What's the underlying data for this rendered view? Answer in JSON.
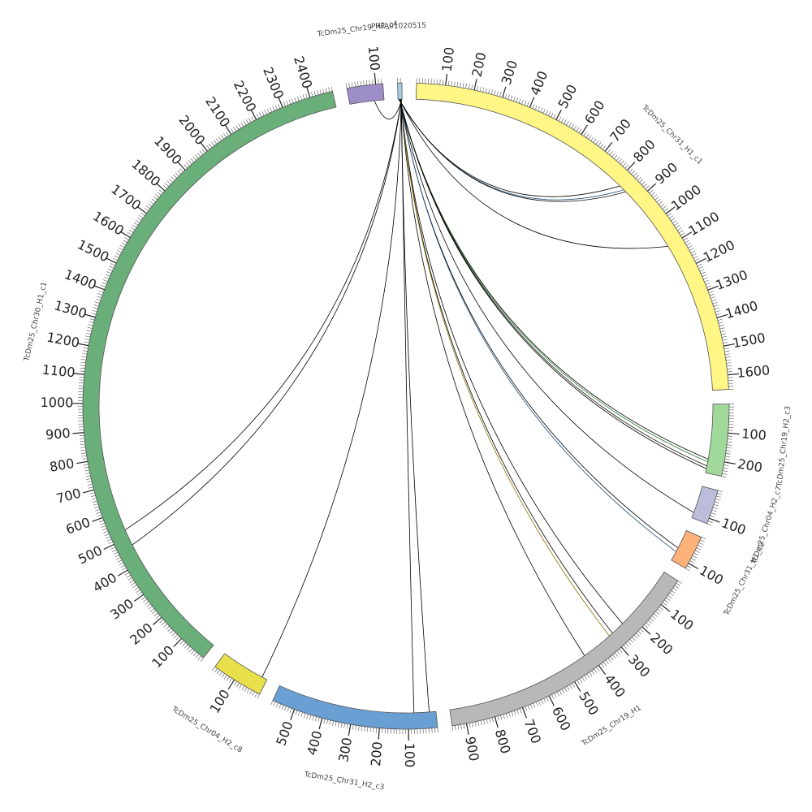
{
  "diagram": {
    "type": "circos",
    "unit_scale": 100,
    "segments": [
      {
        "id": "s_query",
        "label": "PRFA01020515",
        "length": 15,
        "color": "#a6cee3",
        "ticks": []
      },
      {
        "id": "s_chr31_h1",
        "label": "TcDm25_Chr31_H1_c1",
        "length": 1650,
        "color": "#fff685",
        "ticks": [
          "100",
          "200",
          "300",
          "400",
          "500",
          "600",
          "700",
          "800",
          "900",
          "1000",
          "1100",
          "1200",
          "1300",
          "1400",
          "1500",
          "1600"
        ]
      },
      {
        "id": "s_chr19_h2",
        "label": "TcDm25_Chr19_H2_c3",
        "length": 250,
        "color": "#a1d99b",
        "ticks": [
          "100",
          "200"
        ]
      },
      {
        "id": "s_chr04_h2",
        "label": "TcDm25_Chr04_H2_c7",
        "length": 120,
        "color": "#bcbddc",
        "ticks": [
          "100"
        ]
      },
      {
        "id": "s_chr31_small",
        "label": "TcDm25_Chr31_H1_c2",
        "length": 120,
        "color": "#fdb27a",
        "ticks": [
          "100"
        ]
      },
      {
        "id": "s_chr19_h1",
        "label": "TcDm25_Chr19_H1",
        "length": 950,
        "color": "#b8b8b8",
        "ticks": [
          "100",
          "200",
          "300",
          "400",
          "500",
          "600",
          "700",
          "800",
          "900"
        ]
      },
      {
        "id": "s_chr31_h2",
        "label": "TcDm25_Chr31_H2_c3",
        "length": 580,
        "color": "#6a9fd4",
        "ticks": [
          "100",
          "200",
          "300",
          "400",
          "500"
        ]
      },
      {
        "id": "s_chr04_h2_c8",
        "label": "TcDm25_Chr04_H2_c8",
        "length": 180,
        "color": "#e8e04a",
        "ticks": [
          "100"
        ]
      },
      {
        "id": "s_chr30_h1",
        "label": "TcDm25_Chr30_H1_c1",
        "length": 2480,
        "color": "#6aae7a",
        "ticks": [
          "100",
          "200",
          "300",
          "400",
          "500",
          "600",
          "700",
          "800",
          "900",
          "1000",
          "1100",
          "1200",
          "1300",
          "1400",
          "1500",
          "1600",
          "1700",
          "1800",
          "1900",
          "2000",
          "2100",
          "2200",
          "2300",
          "2400"
        ]
      },
      {
        "id": "s_chr19_small",
        "label": "TcDm25_Chr19_H2_c4",
        "length": 125,
        "color": "#9e8ec7",
        "ticks": [
          "100"
        ]
      }
    ],
    "links": [
      {
        "from": "s_query",
        "from_pos": 2,
        "to": "s_chr31_h1",
        "to_pos": 820,
        "color": "#000000"
      },
      {
        "from": "s_query",
        "from_pos": 3,
        "to": "s_chr31_h1",
        "to_pos": 840,
        "color": "#1f4e79"
      },
      {
        "from": "s_query",
        "from_pos": 4,
        "to": "s_chr31_h1",
        "to_pos": 850,
        "color": "#000000"
      },
      {
        "from": "s_query",
        "from_pos": 5,
        "to": "s_chr31_h1",
        "to_pos": 1100,
        "color": "#000000"
      },
      {
        "from": "s_query",
        "from_pos": 6,
        "to": "s_chr19_h2",
        "to_pos": 200,
        "color": "#000000"
      },
      {
        "from": "s_query",
        "from_pos": 6,
        "to": "s_chr19_h2",
        "to_pos": 210,
        "color": "#2e7d32"
      },
      {
        "from": "s_query",
        "from_pos": 7,
        "to": "s_chr19_h2",
        "to_pos": 225,
        "color": "#000000"
      },
      {
        "from": "s_query",
        "from_pos": 7,
        "to": "s_chr19_h2",
        "to_pos": 235,
        "color": "#000000"
      },
      {
        "from": "s_query",
        "from_pos": 8,
        "to": "s_chr04_h2",
        "to_pos": 100,
        "color": "#000000"
      },
      {
        "from": "s_query",
        "from_pos": 8,
        "to": "s_chr31_small",
        "to_pos": 70,
        "color": "#000000"
      },
      {
        "from": "s_query",
        "from_pos": 9,
        "to": "s_chr31_small",
        "to_pos": 85,
        "color": "#1f4e79"
      },
      {
        "from": "s_query",
        "from_pos": 9,
        "to": "s_chr19_h1",
        "to_pos": 240,
        "color": "#000000"
      },
      {
        "from": "s_query",
        "from_pos": 10,
        "to": "s_chr19_h1",
        "to_pos": 290,
        "color": "#000000"
      },
      {
        "from": "s_query",
        "from_pos": 10,
        "to": "s_chr19_h1",
        "to_pos": 305,
        "color": "#8a6d00"
      },
      {
        "from": "s_query",
        "from_pos": 11,
        "to": "s_chr19_h1",
        "to_pos": 420,
        "color": "#000000"
      },
      {
        "from": "s_query",
        "from_pos": 11,
        "to": "s_chr31_h2",
        "to_pos": 25,
        "color": "#000000"
      },
      {
        "from": "s_query",
        "from_pos": 12,
        "to": "s_chr31_h2",
        "to_pos": 80,
        "color": "#000000"
      },
      {
        "from": "s_query",
        "from_pos": 12,
        "to": "s_chr04_h2_c8",
        "to_pos": 20,
        "color": "#000000"
      },
      {
        "from": "s_query",
        "from_pos": 13,
        "to": "s_chr30_h1",
        "to_pos": 470,
        "color": "#000000"
      },
      {
        "from": "s_query",
        "from_pos": 13,
        "to": "s_chr30_h1",
        "to_pos": 530,
        "color": "#000000"
      },
      {
        "from": "s_query",
        "from_pos": 14,
        "to": "s_chr19_small",
        "to_pos": 90,
        "color": "#000000"
      }
    ]
  }
}
